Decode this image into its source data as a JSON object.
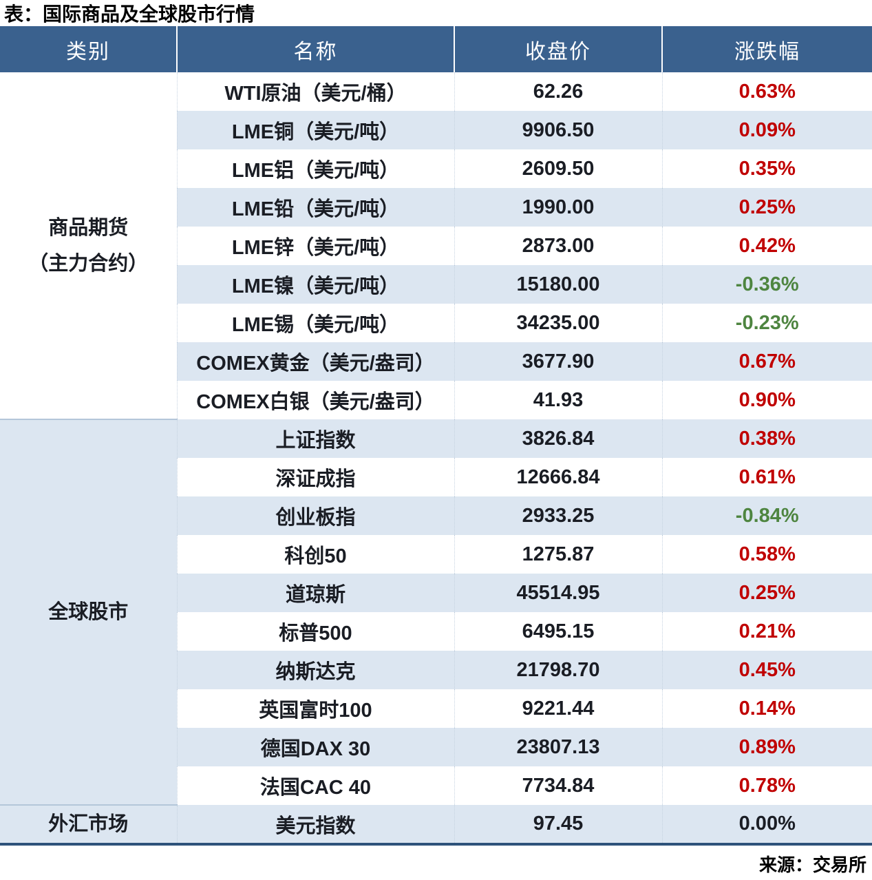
{
  "page": {
    "title": "表：国际商品及全球股市行情",
    "source": "来源：交易所"
  },
  "colors": {
    "header_bg": "#3A618E",
    "header_text": "#FFFFFF",
    "stripe": "#DCE6F1",
    "up": "#C00000",
    "down": "#4E8540",
    "text": "#1A1D24",
    "bottom_border": "#2E527A",
    "section_divider": "#B4C6D9",
    "cell_divider": "#C5D2E0"
  },
  "chart_data": {
    "type": "table",
    "title": "表：国际商品及全球股市行情",
    "columns": [
      "类别",
      "名称",
      "收盘价",
      "涨跌幅"
    ],
    "sections": [
      {
        "category_lines": [
          "商品期货",
          "（主力合约）"
        ],
        "rows": [
          {
            "name": "WTI原油（美元/桶）",
            "close": "62.26",
            "change": "0.63%",
            "dir": "up"
          },
          {
            "name": "LME铜（美元/吨）",
            "close": "9906.50",
            "change": "0.09%",
            "dir": "up"
          },
          {
            "name": "LME铝（美元/吨）",
            "close": "2609.50",
            "change": "0.35%",
            "dir": "up"
          },
          {
            "name": "LME铅（美元/吨）",
            "close": "1990.00",
            "change": "0.25%",
            "dir": "up"
          },
          {
            "name": "LME锌（美元/吨）",
            "close": "2873.00",
            "change": "0.42%",
            "dir": "up"
          },
          {
            "name": "LME镍（美元/吨）",
            "close": "15180.00",
            "change": "-0.36%",
            "dir": "down"
          },
          {
            "name": "LME锡（美元/吨）",
            "close": "34235.00",
            "change": "-0.23%",
            "dir": "down"
          },
          {
            "name": "COMEX黄金（美元/盎司）",
            "close": "3677.90",
            "change": "0.67%",
            "dir": "up"
          },
          {
            "name": "COMEX白银（美元/盎司）",
            "close": "41.93",
            "change": "0.90%",
            "dir": "up"
          }
        ]
      },
      {
        "category_lines": [
          "全球股市"
        ],
        "rows": [
          {
            "name": "上证指数",
            "close": "3826.84",
            "change": "0.38%",
            "dir": "up"
          },
          {
            "name": "深证成指",
            "close": "12666.84",
            "change": "0.61%",
            "dir": "up"
          },
          {
            "name": "创业板指",
            "close": "2933.25",
            "change": "-0.84%",
            "dir": "down"
          },
          {
            "name": "科创50",
            "close": "1275.87",
            "change": "0.58%",
            "dir": "up"
          },
          {
            "name": "道琼斯",
            "close": "45514.95",
            "change": "0.25%",
            "dir": "up"
          },
          {
            "name": "标普500",
            "close": "6495.15",
            "change": "0.21%",
            "dir": "up"
          },
          {
            "name": "纳斯达克",
            "close": "21798.70",
            "change": "0.45%",
            "dir": "up"
          },
          {
            "name": "英国富时100",
            "close": "9221.44",
            "change": "0.14%",
            "dir": "up"
          },
          {
            "name": "德国DAX 30",
            "close": "23807.13",
            "change": "0.89%",
            "dir": "up"
          },
          {
            "name": "法国CAC 40",
            "close": "7734.84",
            "change": "0.78%",
            "dir": "up"
          }
        ]
      },
      {
        "category_lines": [
          "外汇市场"
        ],
        "rows": [
          {
            "name": "美元指数",
            "close": "97.45",
            "change": "0.00%",
            "dir": "flat"
          }
        ]
      }
    ]
  }
}
